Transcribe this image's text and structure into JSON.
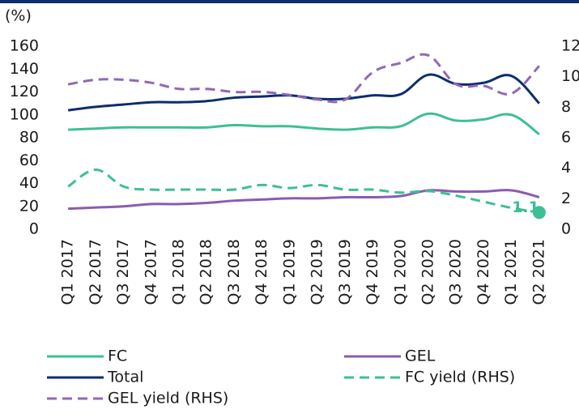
{
  "chart_data": {
    "type": "line",
    "y_unit": "(%)",
    "categories": [
      "Q1 2017",
      "Q2 2017",
      "Q3 2017",
      "Q4 2017",
      "Q1 2018",
      "Q2 2018",
      "Q3 2018",
      "Q4 2018",
      "Q1 2019",
      "Q2 2019",
      "Q3 2019",
      "Q4 2019",
      "Q1 2020",
      "Q2 2020",
      "Q3 2020",
      "Q4 2020",
      "Q1 2021",
      "Q2 2021"
    ],
    "series": [
      {
        "name": "FC",
        "color": "#3dbf96",
        "dash": false,
        "axis": "y",
        "values": [
          87,
          88,
          89,
          89,
          89,
          89,
          91,
          90,
          90,
          88,
          87,
          89,
          90,
          101,
          95,
          96,
          100,
          83
        ]
      },
      {
        "name": "GEL",
        "color": "#8a5cb0",
        "dash": false,
        "axis": "y",
        "values": [
          18,
          19,
          20,
          22,
          22,
          23,
          25,
          26,
          27,
          27,
          28,
          28,
          29,
          34,
          33,
          33,
          34,
          28
        ]
      },
      {
        "name": "Total",
        "color": "#0d2d6c",
        "dash": false,
        "axis": "y",
        "values": [
          104,
          107,
          109,
          111,
          111,
          112,
          115,
          116,
          117,
          114,
          114,
          117,
          118,
          135,
          127,
          128,
          134,
          110
        ]
      },
      {
        "name": "FC yield (RHS)",
        "color": "#3dbf96",
        "dash": true,
        "axis": "y2",
        "values": [
          2.8,
          3.9,
          2.8,
          2.6,
          2.6,
          2.6,
          2.6,
          2.9,
          2.7,
          2.9,
          2.6,
          2.6,
          2.4,
          2.5,
          2.2,
          1.8,
          1.4,
          1.1
        ]
      },
      {
        "name": "GEL yield (RHS)",
        "color": "#9068b8",
        "dash": true,
        "axis": "y2",
        "values": [
          9.5,
          9.8,
          9.8,
          9.6,
          9.2,
          9.2,
          9.0,
          9.0,
          8.8,
          8.5,
          8.5,
          10.3,
          10.9,
          11.4,
          9.5,
          9.4,
          8.9,
          10.7
        ]
      }
    ],
    "ylim": [
      0,
      160
    ],
    "yticks": [
      0,
      20,
      40,
      60,
      80,
      100,
      120,
      140,
      160
    ],
    "y2lim": [
      0,
      12
    ],
    "y2ticks": [
      0,
      2,
      4,
      6,
      8,
      10,
      12
    ],
    "legend": "bottom",
    "grid": false
  }
}
